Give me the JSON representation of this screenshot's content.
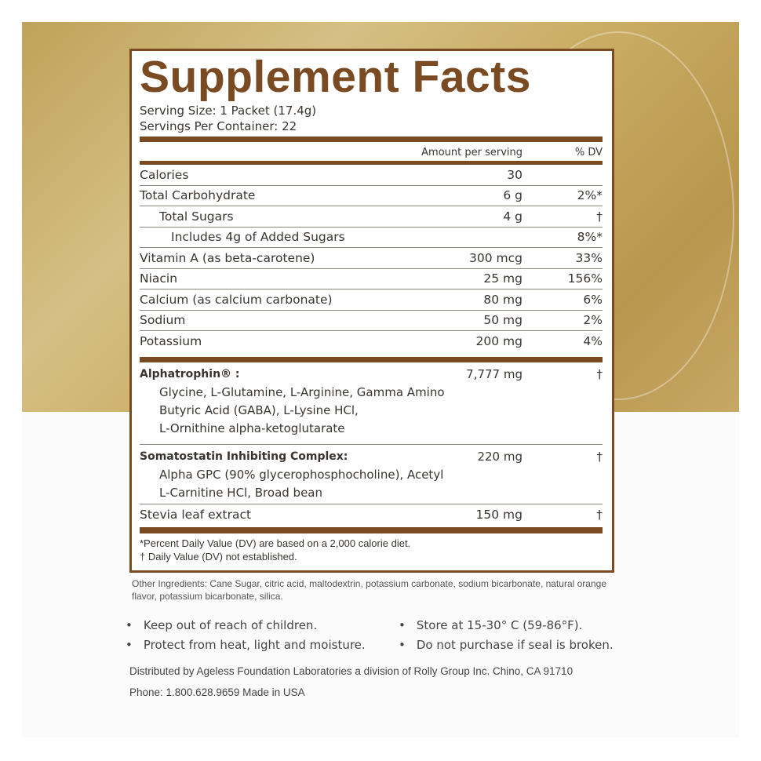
{
  "title": "Supplement Facts",
  "serving_size": "Serving Size: 1 Packet (17.4g)",
  "servings_per_container": "Servings Per Container: 22",
  "header": {
    "amount": "Amount per serving",
    "dv": "% DV"
  },
  "rows": [
    {
      "name": "Calories",
      "amount": "30",
      "dv": ""
    },
    {
      "name": "Total Carbohydrate",
      "amount": "6 g",
      "dv": "2%*"
    },
    {
      "name": "Total Sugars",
      "amount": "4 g",
      "dv": "†"
    },
    {
      "name": "Includes 4g of  Added Sugars",
      "amount": "",
      "dv": "8%*"
    },
    {
      "name": "Vitamin A (as beta-carotene)",
      "amount": "300 mcg",
      "dv": "33%"
    },
    {
      "name": "Niacin",
      "amount": "25 mg",
      "dv": "156%"
    },
    {
      "name": "Calcium (as calcium carbonate)",
      "amount": "80 mg",
      "dv": "6%"
    },
    {
      "name": "Sodium",
      "amount": "50 mg",
      "dv": "2%"
    },
    {
      "name": "Potassium",
      "amount": "200 mg",
      "dv": "4%"
    }
  ],
  "blends": [
    {
      "name": "Alphatrophin® :",
      "amount": "7,777 mg",
      "dv": "†",
      "lines": [
        "Glycine, L-Glutamine, L-Arginine, Gamma Amino",
        "Butyric Acid (GABA), L-Lysine HCl,",
        "L-Ornithine alpha-ketoglutarate"
      ]
    },
    {
      "name": "Somatostatin Inhibiting Complex:",
      "amount": "220 mg",
      "dv": "†",
      "lines": [
        "Alpha GPC (90% glycerophosphocholine), Acetyl",
        "L-Carnitine HCl, Broad bean"
      ]
    }
  ],
  "stevia": {
    "name": "Stevia leaf extract",
    "amount": "150 mg",
    "dv": "†"
  },
  "footnotes": [
    "*Percent  Daily Value (DV) are based on a 2,000 calorie diet.",
    "† Daily Value (DV) not established."
  ],
  "other_ingredients": "Other Ingredients: Cane Sugar, citric acid, maltodextrin, potassium carbonate, sodium bicarbonate, natural orange flavor, potassium bicarbonate, silica.",
  "bullets": [
    "Keep out of reach of children.",
    "Store at 15-30° C (59-86°F).",
    "Protect  from heat, light and moisture.",
    "Do not purchase if seal is broken."
  ],
  "distributor": "Distributed by Ageless Foundation Laboratories a division of Rolly Group Inc.  Chino, CA 91710",
  "contact": "Phone: 1.800.628.9659  Made in USA",
  "colors": {
    "brand_brown": "#7a4a22",
    "gold": "#c9ab62"
  }
}
